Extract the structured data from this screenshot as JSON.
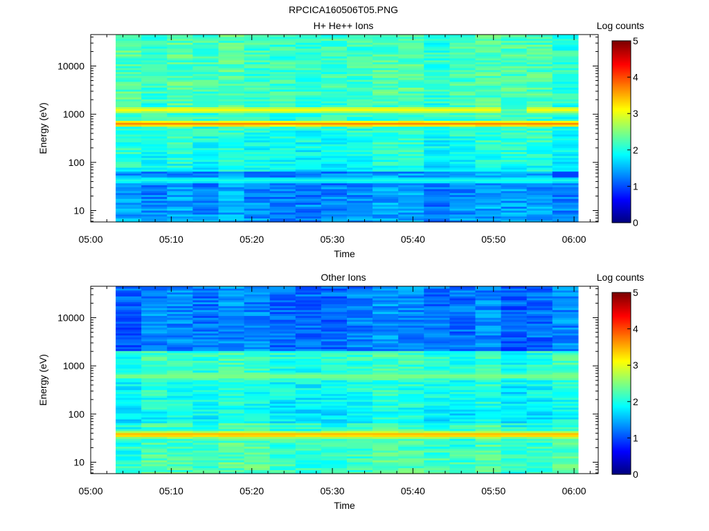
{
  "figure": {
    "title": "RPCICA160506T05.PNG"
  },
  "chart_data": [
    {
      "type": "heatmap",
      "title": "H+ He++ Ions",
      "xlabel": "Time",
      "ylabel": "Energy (eV)",
      "colorbar_label": "Log counts",
      "colorbar_ticks": [
        "0",
        "1",
        "2",
        "3",
        "4",
        "5"
      ],
      "colorbar_range": [
        0,
        5
      ],
      "colormap": "jet",
      "x_ticks": [
        "05:00",
        "05:10",
        "05:20",
        "05:30",
        "05:40",
        "05:50",
        "06:00"
      ],
      "x_range_minutes": [
        0,
        63
      ],
      "y_scale": "log",
      "y_ticks": [
        "10",
        "100",
        "1000",
        "10000"
      ],
      "y_range": [
        5.8,
        45000
      ],
      "data_time_range_minutes": [
        3.1,
        60.5
      ],
      "time_bins": 18,
      "bands": [
        {
          "center_eV": 1250,
          "log_counts": 3.1,
          "gaps_at_bins": [
            15
          ]
        },
        {
          "center_eV": 640,
          "log_counts": 3.7
        },
        {
          "center_eV": 43,
          "log_counts": 2.0
        },
        {
          "center_eV": 30,
          "log_counts": 0.9,
          "at_bins": [
            12
          ]
        }
      ],
      "background": {
        "high_energy_log_counts": 2.2,
        "mid_energy_log_counts": 1.9,
        "low_energy_log_counts": 1.3
      }
    },
    {
      "type": "heatmap",
      "title": "Other Ions",
      "xlabel": "Time",
      "ylabel": "Energy (eV)",
      "colorbar_label": "Log counts",
      "colorbar_ticks": [
        "0",
        "1",
        "2",
        "3",
        "4",
        "5"
      ],
      "colorbar_range": [
        0,
        5
      ],
      "colormap": "jet",
      "x_ticks": [
        "05:00",
        "05:10",
        "05:20",
        "05:30",
        "05:40",
        "05:50",
        "06:00"
      ],
      "x_range_minutes": [
        0,
        63
      ],
      "y_scale": "log",
      "y_ticks": [
        "10",
        "100",
        "1000",
        "10000"
      ],
      "y_range": [
        5.8,
        45000
      ],
      "data_time_range_minutes": [
        3.1,
        60.5
      ],
      "time_bins": 18,
      "bands": [
        {
          "center_eV": 620,
          "log_counts": 2.5
        },
        {
          "center_eV": 1250,
          "log_counts": 1.7
        },
        {
          "center_eV": 38,
          "log_counts": 3.5
        }
      ],
      "background": {
        "high_energy_log_counts": 1.2,
        "mid_energy_log_counts": 1.8,
        "low_energy_log_counts": 2.1
      }
    }
  ]
}
